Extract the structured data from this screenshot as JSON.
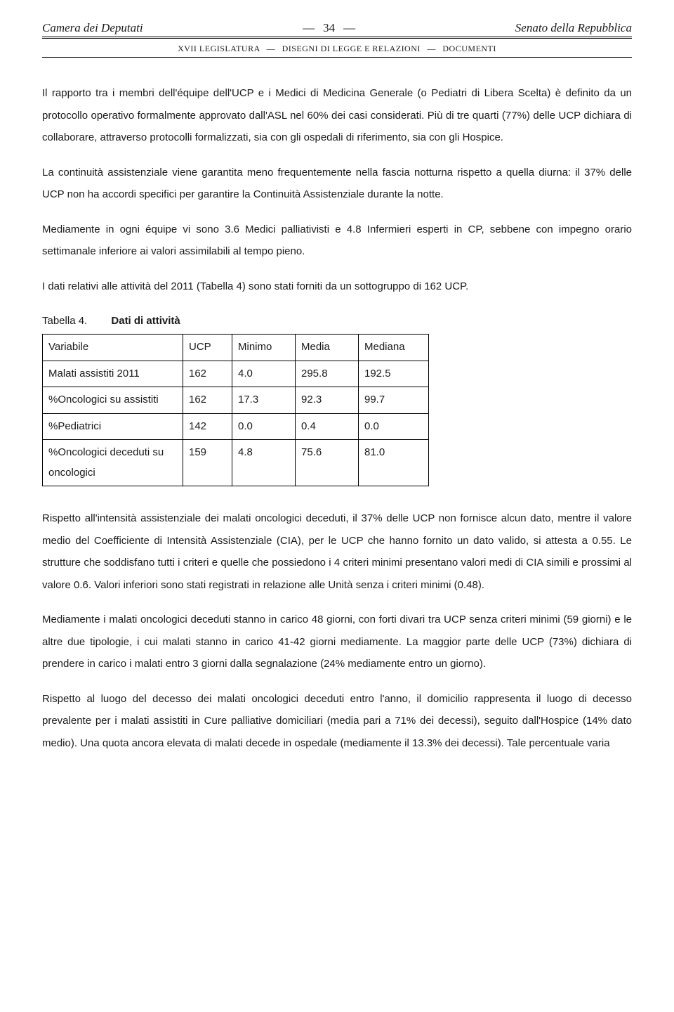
{
  "header": {
    "left": "Camera dei Deputati",
    "pageNumber": "34",
    "right": "Senato della Repubblica",
    "sub_prefix": "XVII LEGISLATURA",
    "sub_middle": "DISEGNI DI LEGGE E RELAZIONI",
    "sub_suffix": "DOCUMENTI"
  },
  "paragraphs": {
    "p1": "Il rapporto tra i membri dell'équipe dell'UCP e i Medici di Medicina Generale (o Pediatri di Libera Scelta) è definito da un protocollo operativo formalmente approvato dall'ASL nel 60% dei casi considerati. Più di tre quarti (77%) delle UCP dichiara di collaborare, attraverso protocolli formalizzati, sia con gli ospedali di riferimento, sia con gli Hospice.",
    "p2": "La continuità assistenziale viene garantita meno frequentemente nella fascia notturna rispetto a quella diurna: il 37% delle UCP non ha accordi specifici per garantire la Continuità Assistenziale durante la notte.",
    "p3": "Mediamente in ogni équipe vi sono 3.6 Medici palliativisti e 4.8 Infermieri esperti in CP, sebbene con impegno orario settimanale inferiore ai valori assimilabili al tempo pieno.",
    "p4": "I dati relativi alle attività del 2011 (Tabella 4) sono stati forniti da un sottogruppo di 162 UCP."
  },
  "table": {
    "label": "Tabella 4.",
    "title": "Dati di attività",
    "columns": [
      "Variabile",
      "UCP",
      "Minimo",
      "Media",
      "Mediana"
    ],
    "rows": [
      [
        "Malati assistiti 2011",
        "162",
        "4.0",
        "295.8",
        "192.5"
      ],
      [
        "%Oncologici su assistiti",
        "162",
        "17.3",
        "92.3",
        "99.7"
      ],
      [
        "%Pediatrici",
        "142",
        "0.0",
        "0.4",
        "0.0"
      ],
      [
        "%Oncologici deceduti su oncologici",
        "159",
        "4.8",
        "75.6",
        "81.0"
      ]
    ]
  },
  "paragraphs2": {
    "p5": "Rispetto all'intensità assistenziale dei malati oncologici deceduti, il 37% delle UCP non fornisce alcun dato, mentre il valore medio del Coefficiente di Intensità Assistenziale (CIA), per le UCP che hanno fornito un dato valido, si attesta a 0.55. Le strutture che soddisfano tutti i criteri e quelle che possiedono i 4 criteri minimi presentano valori medi di CIA simili e prossimi al valore 0.6. Valori inferiori sono stati registrati in relazione alle Unità senza i criteri minimi (0.48).",
    "p6": "Mediamente i malati oncologici deceduti stanno in carico 48 giorni, con forti divari tra UCP senza criteri minimi (59 giorni) e le altre due tipologie, i cui malati stanno in carico 41-42 giorni mediamente. La maggior parte delle UCP (73%) dichiara di prendere in carico i malati entro 3 giorni dalla segnalazione (24% mediamente entro un giorno).",
    "p7": "Rispetto al luogo del decesso dei malati oncologici deceduti entro l'anno, il domicilio rappresenta il luogo di decesso prevalente per i malati assistiti in Cure palliative domiciliari (media pari a 71% dei decessi), seguito dall'Hospice (14% dato medio). Una quota ancora elevata di malati decede in ospedale (mediamente il 13.3% dei decessi). Tale percentuale varia"
  }
}
